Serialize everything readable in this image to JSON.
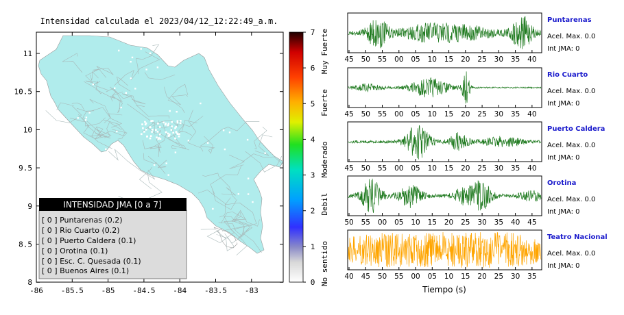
{
  "map": {
    "title": "Intensidad calculada el 2023/04/12_12:22:49_a.m.",
    "x_ticks": [
      "-86",
      "-85.5",
      "-85",
      "-84.5",
      "-84",
      "-83.5",
      "-83"
    ],
    "y_ticks": [
      "11",
      "10.5",
      "10",
      "9.5",
      "9",
      "8.5",
      "8"
    ],
    "land_color": "#b0ecec",
    "legend": {
      "header": "INTENSIDAD JMA [0 a 7]",
      "stations": [
        "[ 0 ]  Puntarenas (0.2)",
        "[ 0 ]  Rio Cuarto (0.2)",
        "[ 0 ]  Puerto Caldera (0.1)",
        "[ 0 ]  Orotina (0.1)",
        "[ 0 ]  Esc. C. Quesada (0.1)",
        "[ 0 ]  Buenos Aires (0.1)"
      ]
    }
  },
  "colorbar": {
    "ticks": [
      "0",
      "1",
      "2",
      "3",
      "4",
      "5",
      "6",
      "7"
    ],
    "labels": [
      "No sentido",
      "Debil",
      "Moderado",
      "Fuerte",
      "Muy Fuerte"
    ]
  },
  "chart_data": [
    {
      "type": "line",
      "station": "Puntarenas",
      "accel_label": "Acel. Max. 0.0",
      "int_label": "Int JMA: 0",
      "x_ticks": [
        "45",
        "50",
        "55",
        "00",
        "05",
        "10",
        "15",
        "20",
        "25",
        "30",
        "35",
        "40"
      ],
      "color": "#1f7a1f"
    },
    {
      "type": "line",
      "station": "Rio Cuarto",
      "accel_label": "Acel. Max. 0.0",
      "int_label": "Int JMA: 0",
      "x_ticks": [
        "45",
        "50",
        "55",
        "00",
        "05",
        "10",
        "15",
        "20",
        "25",
        "30",
        "35",
        "40"
      ],
      "color": "#1f7a1f"
    },
    {
      "type": "line",
      "station": "Puerto Caldera",
      "accel_label": "Acel. Max. 0.0",
      "int_label": "Int JMA: 0",
      "x_ticks": [
        "45",
        "50",
        "55",
        "00",
        "05",
        "10",
        "15",
        "20",
        "25",
        "30",
        "35",
        "40"
      ],
      "color": "#1f7a1f"
    },
    {
      "type": "line",
      "station": "Orotina",
      "accel_label": "Acel. Max. 0.0",
      "int_label": "Int JMA: 0",
      "x_ticks": [
        "50",
        "55",
        "00",
        "05",
        "10",
        "15",
        "20",
        "25",
        "30",
        "35",
        "40",
        "45"
      ],
      "color": "#1f7a1f"
    },
    {
      "type": "line",
      "station": "Teatro Nacional",
      "accel_label": "Acel. Max. 0.0",
      "int_label": "Int JMA: 0",
      "x_ticks": [
        "40",
        "45",
        "50",
        "55",
        "00",
        "05",
        "10",
        "15",
        "20",
        "25",
        "30",
        "35"
      ],
      "color": "#ffa500",
      "xlabel": "Tiempo (s)"
    }
  ]
}
